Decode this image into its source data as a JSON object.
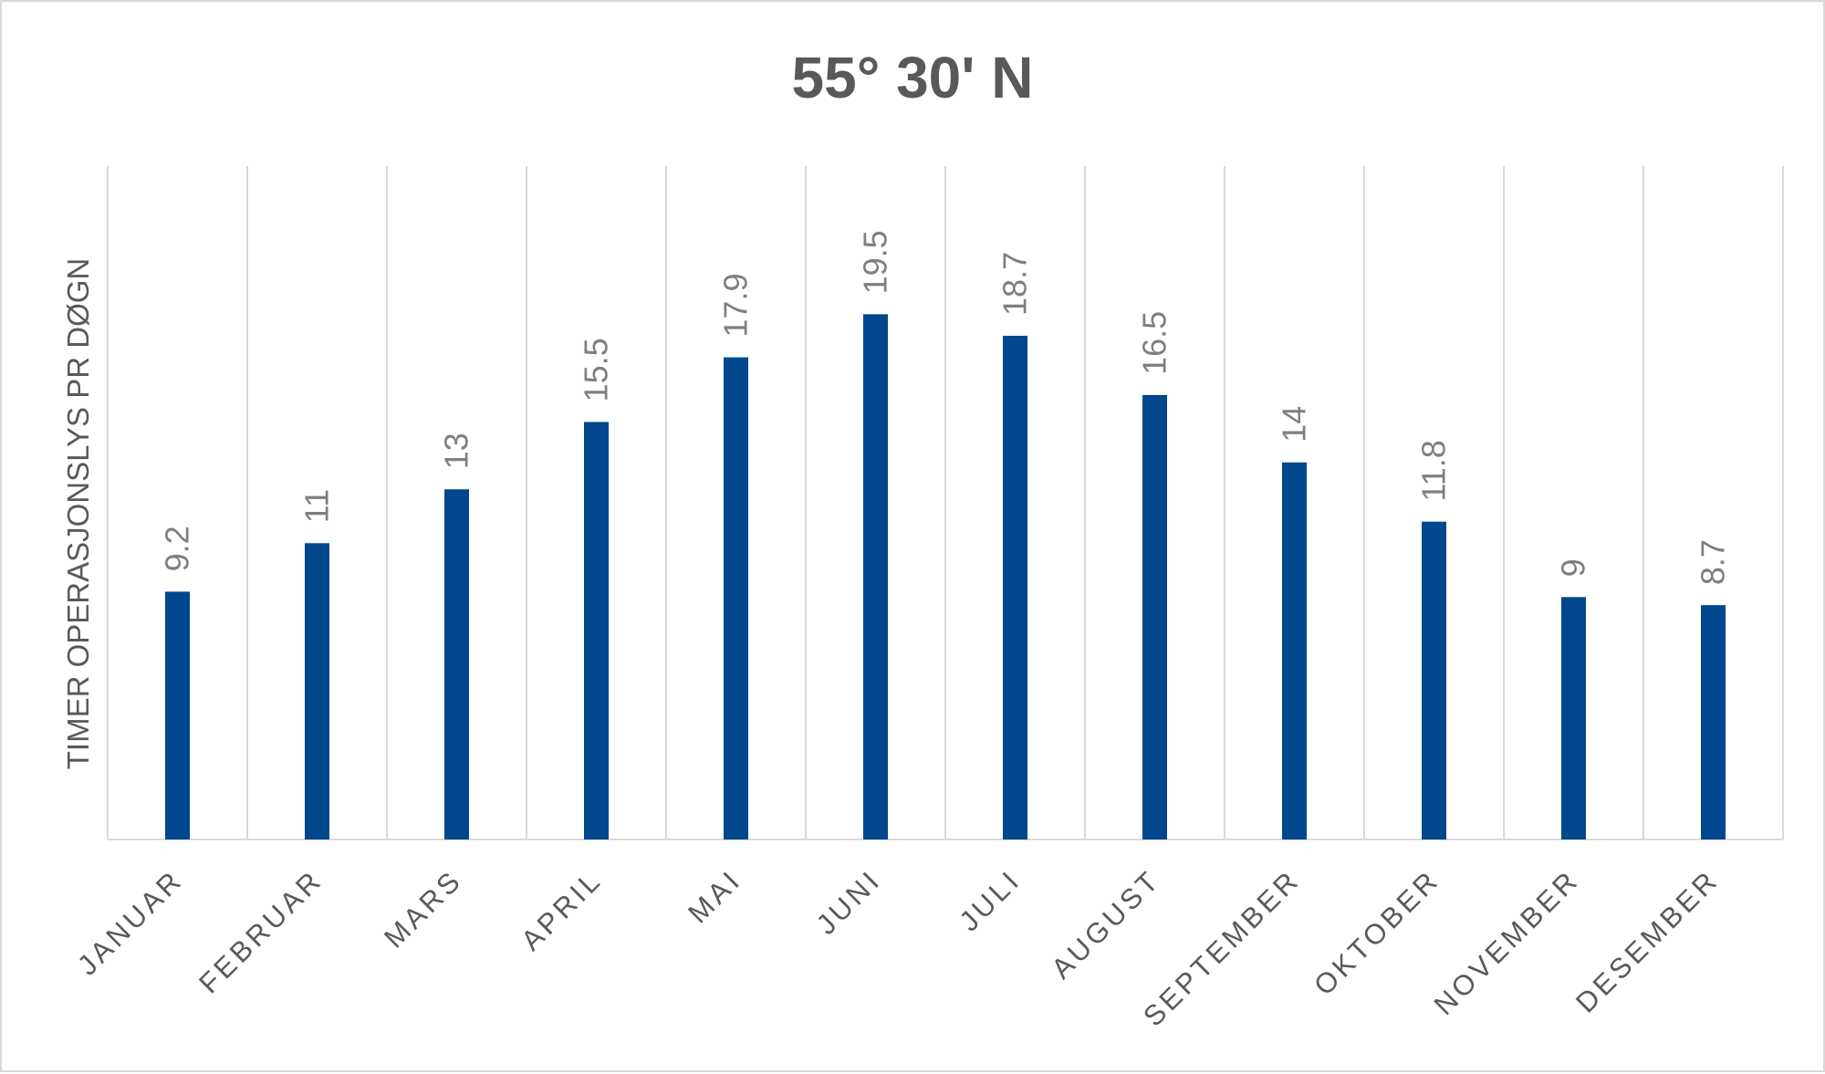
{
  "chart_data": {
    "type": "bar",
    "title": "55° 30' N",
    "ylabel": "TIMER OPERASJONSLYS PR DØGN",
    "xlabel": "",
    "categories": [
      "JANUAR",
      "FEBRUAR",
      "MARS",
      "APRIL",
      "MAI",
      "JUNI",
      "JULI",
      "AUGUST",
      "SEPTEMBER",
      "OKTOBER",
      "NOVEMBER",
      "DESEMBER"
    ],
    "values": [
      9.2,
      11,
      13,
      15.5,
      17.9,
      19.5,
      18.7,
      16.5,
      14,
      11.8,
      9,
      8.7
    ],
    "data_labels": [
      "9.2",
      "11",
      "13",
      "15.5",
      "17.9",
      "19.5",
      "18.7",
      "16.5",
      "14",
      "11.8",
      "9",
      "8.7"
    ],
    "ylim": [
      0,
      25
    ],
    "grid": "vertical",
    "bar_color": "#00478D"
  }
}
